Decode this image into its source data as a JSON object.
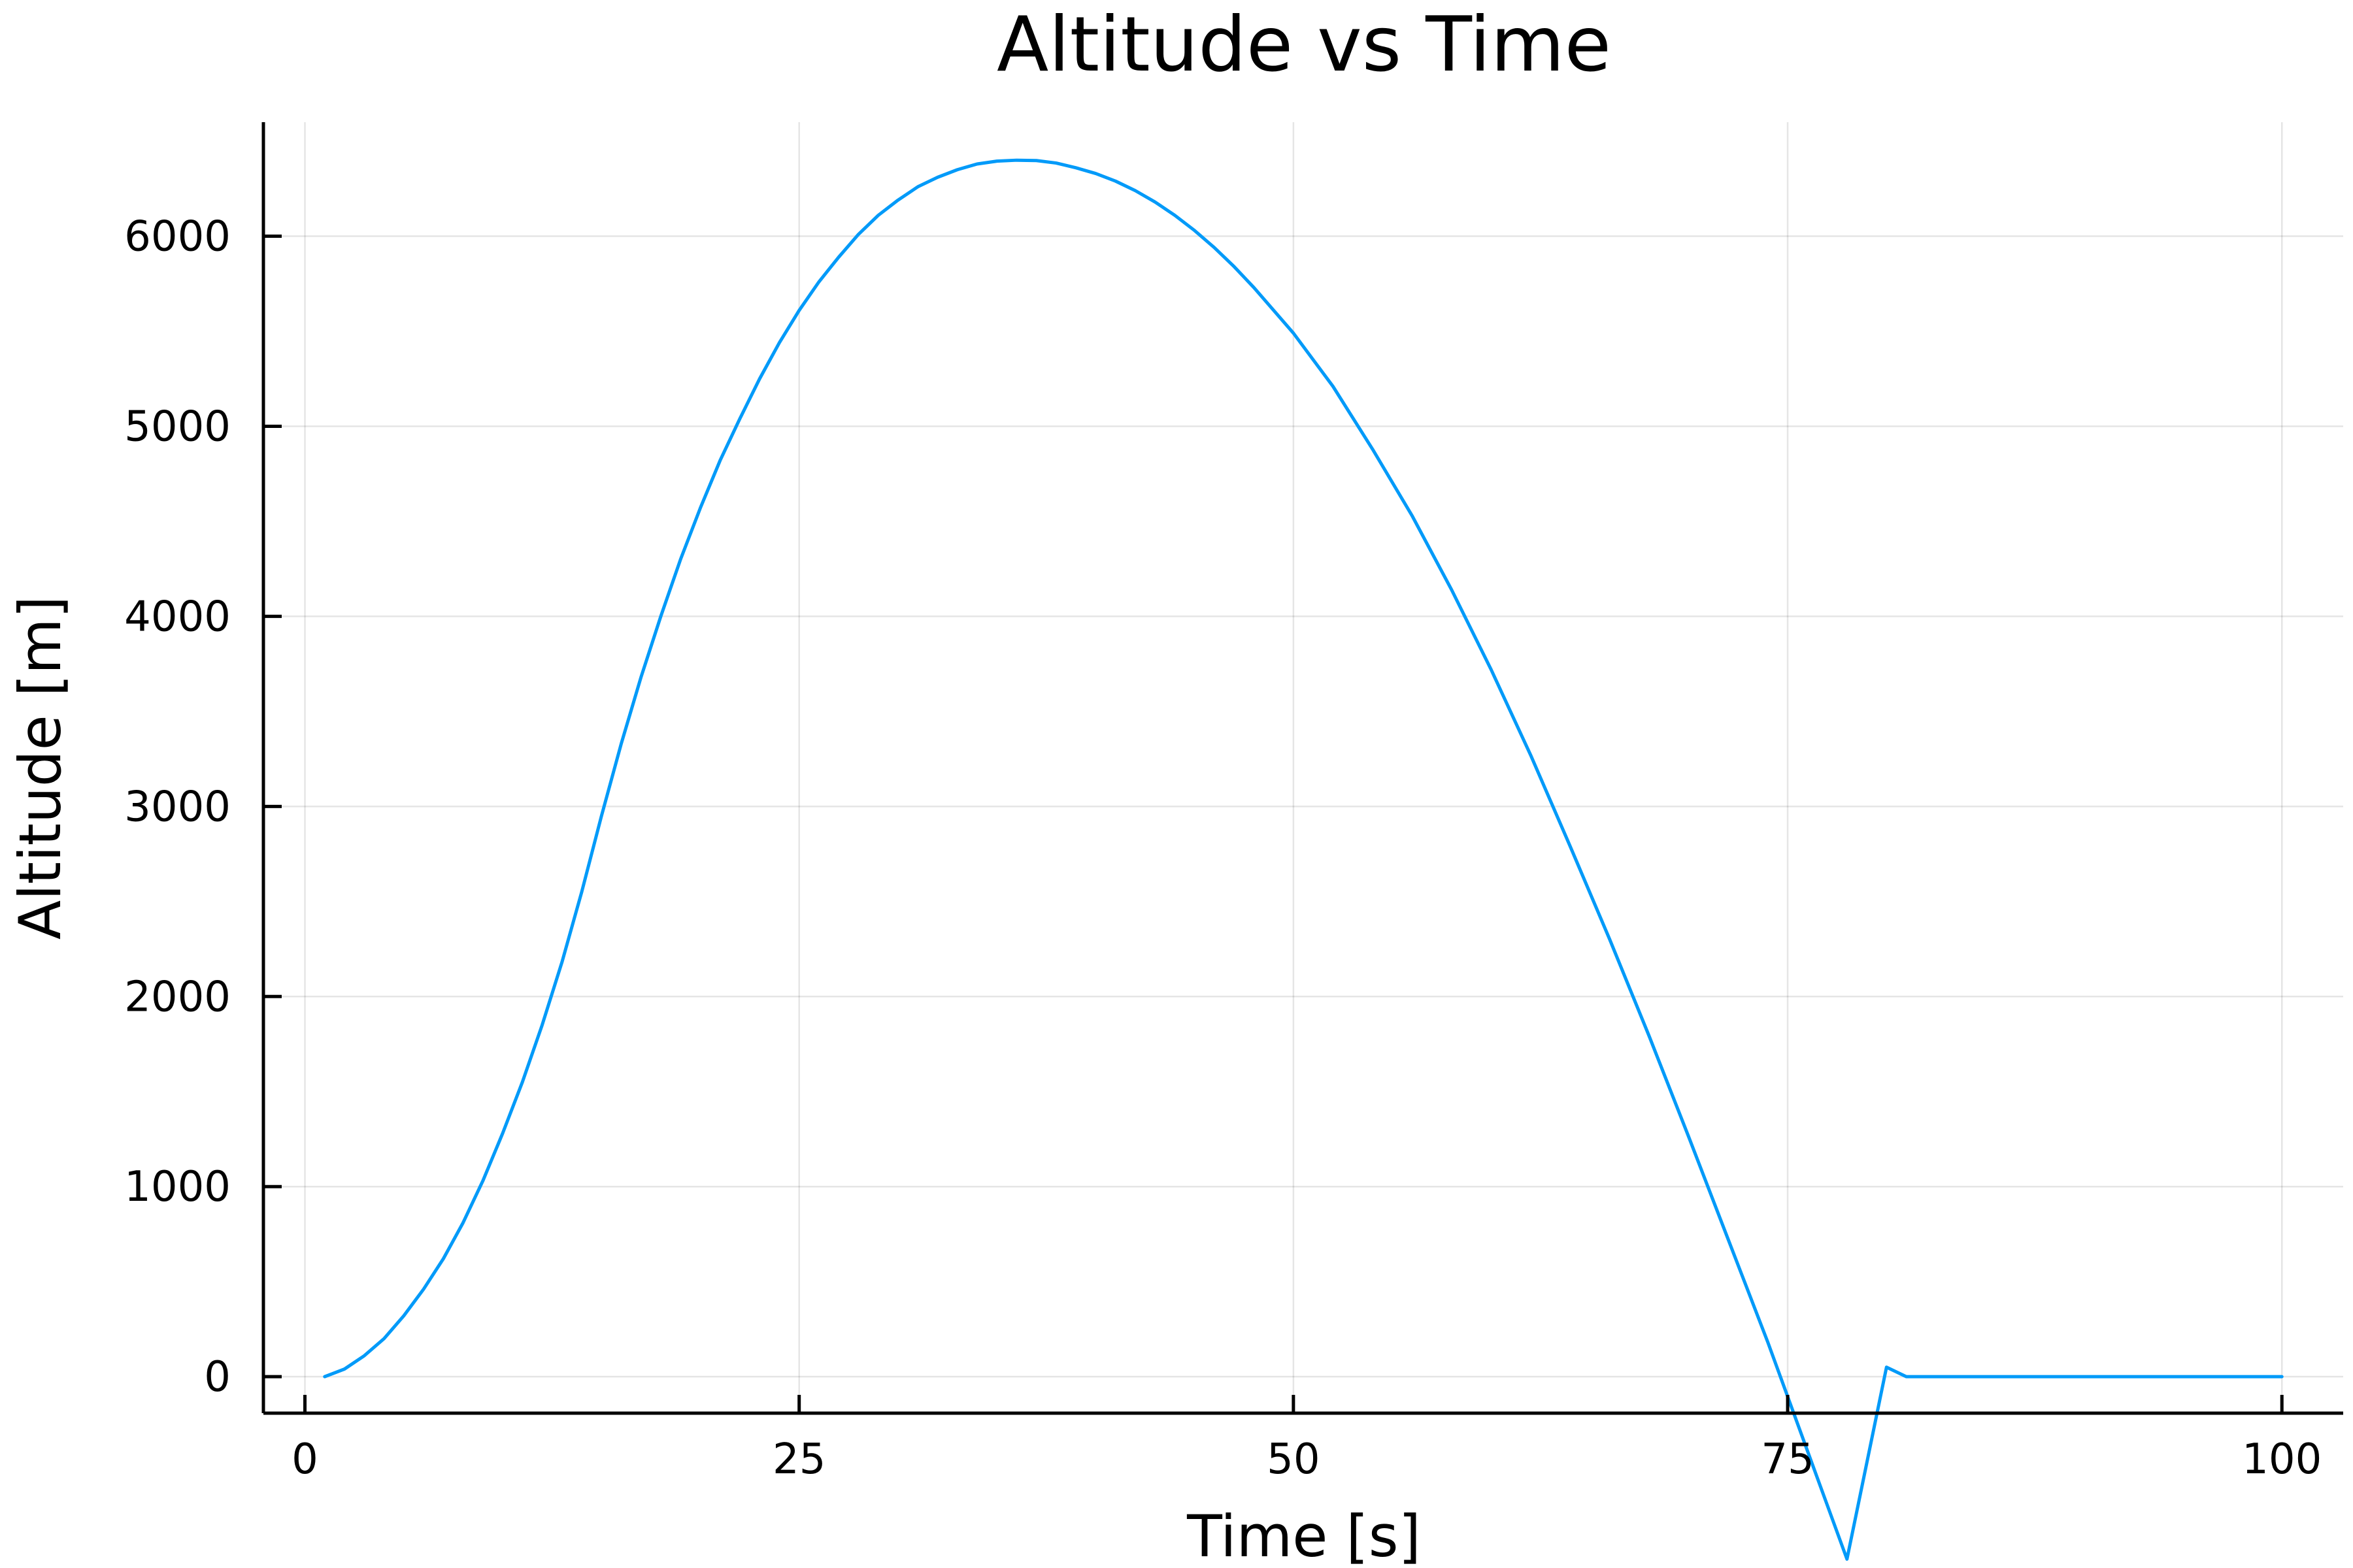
{
  "chart_data": {
    "type": "line",
    "title": "Altitude vs Time",
    "xlabel": "Time [s]",
    "ylabel": "Altitude [m]",
    "xlim": [
      -2.1,
      103.1
    ],
    "ylim": [
      -192,
      6600
    ],
    "xticks": [
      0,
      25,
      50,
      75,
      100
    ],
    "yticks": [
      0,
      1000,
      2000,
      3000,
      4000,
      5000,
      6000
    ],
    "grid": true,
    "legend": "none",
    "series": [
      {
        "color": "#009af9",
        "x": [
          1,
          2,
          3,
          4,
          5,
          6,
          7,
          8,
          9,
          10,
          11,
          12,
          13,
          14,
          15,
          16,
          17,
          18,
          19,
          20,
          21,
          22,
          23,
          24,
          25,
          26,
          27,
          28,
          29,
          30,
          31,
          32,
          33,
          34,
          35,
          36,
          37,
          38,
          39,
          40,
          41,
          42,
          43,
          44,
          45,
          46,
          47,
          48,
          49,
          50,
          52,
          54,
          56,
          58,
          60,
          62,
          64,
          66,
          68,
          70,
          72,
          74,
          76,
          78,
          80,
          81,
          82,
          85,
          90,
          95,
          100
        ],
        "y": [
          0,
          40,
          110,
          200,
          320,
          460,
          620,
          810,
          1030,
          1280,
          1550,
          1850,
          2180,
          2550,
          2950,
          3330,
          3680,
          4000,
          4300,
          4570,
          4820,
          5040,
          5250,
          5440,
          5610,
          5760,
          5890,
          6010,
          6110,
          6190,
          6260,
          6310,
          6350,
          6380,
          6395,
          6400,
          6398,
          6385,
          6360,
          6330,
          6290,
          6240,
          6180,
          6110,
          6030,
          5940,
          5840,
          5730,
          5610,
          5490,
          5210,
          4880,
          4530,
          4140,
          3720,
          3270,
          2790,
          2300,
          1790,
          1260,
          720,
          180,
          -390,
          -960,
          50,
          0,
          0,
          0,
          0,
          0,
          0
        ]
      }
    ]
  }
}
